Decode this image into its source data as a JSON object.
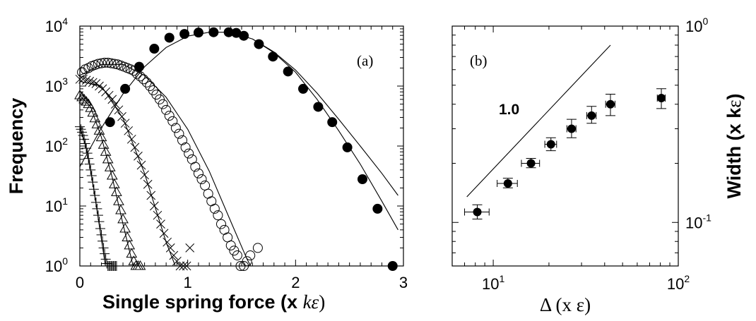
{
  "chart_data": [
    {
      "type": "scatter",
      "panel_label": "(a)",
      "xlabel": "Single spring force (x kε)",
      "xlabel_parts": {
        "prefix": "Single spring force (x ",
        "unit": "kε",
        "suffix": ")"
      },
      "ylabel": "Frequency",
      "xlim": [
        0,
        3
      ],
      "ylim": [
        1,
        10000
      ],
      "yscale": "log",
      "xticks": [
        "0",
        "1",
        "2",
        "3"
      ],
      "yticks": [
        {
          "base": "10",
          "exp": "0"
        },
        {
          "base": "10",
          "exp": "1"
        },
        {
          "base": "10",
          "exp": "2"
        },
        {
          "base": "10",
          "exp": "3"
        },
        {
          "base": "10",
          "exp": "4"
        }
      ],
      "grid": false,
      "series": [
        {
          "marker": "filled-circle",
          "x": [
            0.28,
            0.42,
            0.55,
            0.69,
            0.83,
            0.97,
            1.1,
            1.24,
            1.38,
            1.45,
            1.52,
            1.66,
            1.79,
            1.93,
            2.07,
            2.21,
            2.34,
            2.48,
            2.62,
            2.76,
            2.9
          ],
          "y": [
            250,
            900,
            2100,
            4200,
            6400,
            7400,
            7800,
            7900,
            7900,
            7700,
            6900,
            5000,
            3100,
            1750,
            900,
            450,
            250,
            95,
            28,
            9,
            1
          ],
          "fit": {
            "x": [
              0.0,
              0.2,
              0.4,
              0.6,
              0.8,
              1.0,
              1.2,
              1.4,
              1.6,
              1.8,
              2.0,
              2.2,
              2.4,
              2.6,
              2.8,
              2.95
            ],
            "y": [
              45,
              200,
              740,
              2100,
              4400,
              6800,
              7900,
              7900,
              6100,
              3600,
              1700,
              600,
              180,
              50,
              12,
              4
            ]
          },
          "fit2": {
            "x": [
              1.6,
              1.8,
              2.0,
              2.2,
              2.4,
              2.6,
              2.8,
              2.95
            ],
            "y": [
              6100,
              3700,
              1850,
              760,
              280,
              100,
              35,
              15
            ]
          }
        },
        {
          "marker": "open-circle",
          "x": [
            0.02,
            0.05,
            0.08,
            0.11,
            0.14,
            0.17,
            0.2,
            0.23,
            0.26,
            0.29,
            0.32,
            0.35,
            0.38,
            0.41,
            0.44,
            0.47,
            0.5,
            0.53,
            0.56,
            0.59,
            0.62,
            0.65,
            0.68,
            0.71,
            0.74,
            0.77,
            0.8,
            0.83,
            0.86,
            0.89,
            0.92,
            0.95,
            0.98,
            1.01,
            1.04,
            1.07,
            1.1,
            1.13,
            1.16,
            1.19,
            1.22,
            1.25,
            1.28,
            1.31,
            1.34,
            1.37,
            1.4,
            1.43,
            1.46,
            1.49,
            1.52,
            1.55,
            1.58,
            1.65
          ],
          "y": [
            1700,
            1900,
            2000,
            2150,
            2250,
            2350,
            2400,
            2450,
            2450,
            2400,
            2350,
            2300,
            2200,
            2100,
            2000,
            1900,
            1800,
            1600,
            1450,
            1300,
            1150,
            1000,
            850,
            720,
            600,
            500,
            400,
            320,
            260,
            200,
            160,
            125,
            95,
            75,
            60,
            45,
            35,
            28,
            22,
            16,
            12,
            9,
            7,
            5,
            4,
            3,
            2.2,
            1.8,
            1.5,
            1,
            1,
            1.2,
            1.5,
            2
          ],
          "fit": {
            "x": [
              0.0,
              0.2,
              0.4,
              0.6,
              0.8,
              1.0,
              1.2,
              1.4,
              1.55,
              1.7
            ],
            "y": [
              1500,
              2300,
              2300,
              1500,
              650,
              190,
              38,
              5.5,
              1.3,
              0.4
            ]
          }
        },
        {
          "marker": "cross",
          "x": [
            0.0,
            0.03,
            0.06,
            0.09,
            0.12,
            0.15,
            0.18,
            0.21,
            0.24,
            0.27,
            0.3,
            0.33,
            0.36,
            0.39,
            0.42,
            0.45,
            0.48,
            0.51,
            0.54,
            0.57,
            0.6,
            0.63,
            0.66,
            0.69,
            0.72,
            0.75,
            0.78,
            0.81,
            0.84,
            0.87,
            0.9,
            0.93,
            0.96,
            0.99,
            1.02
          ],
          "y": [
            1300,
            1300,
            1250,
            1200,
            1150,
            1100,
            1000,
            900,
            800,
            700,
            600,
            500,
            400,
            310,
            240,
            180,
            130,
            95,
            68,
            48,
            33,
            23,
            15,
            10,
            7,
            5,
            3.5,
            2.5,
            2,
            1.5,
            1.2,
            1,
            1,
            1,
            2
          ],
          "fit": {
            "x": [
              0.0,
              0.2,
              0.4,
              0.6,
              0.8,
              0.95,
              1.02
            ],
            "y": [
              1200,
              1000,
              290,
              35,
              2.5,
              0.5,
              0.25
            ]
          }
        },
        {
          "marker": "triangle",
          "x": [
            0.0,
            0.02,
            0.04,
            0.06,
            0.08,
            0.1,
            0.12,
            0.14,
            0.16,
            0.18,
            0.2,
            0.22,
            0.24,
            0.26,
            0.28,
            0.3,
            0.32,
            0.34,
            0.36,
            0.38,
            0.4,
            0.42,
            0.44,
            0.46,
            0.48,
            0.5,
            0.52,
            0.54,
            0.56
          ],
          "y": [
            700,
            650,
            600,
            550,
            500,
            430,
            360,
            290,
            230,
            180,
            140,
            105,
            80,
            60,
            44,
            32,
            23,
            17,
            12,
            8.5,
            6,
            4.2,
            3,
            2.2,
            1.6,
            1.2,
            1,
            1,
            1
          ],
          "fit": {
            "x": [
              0.0,
              0.1,
              0.2,
              0.3,
              0.4,
              0.5,
              0.6
            ],
            "y": [
              700,
              450,
              140,
              30,
              5,
              0.9,
              0.15
            ]
          }
        },
        {
          "marker": "plus",
          "x": [
            0.0,
            0.01,
            0.02,
            0.03,
            0.04,
            0.05,
            0.06,
            0.07,
            0.08,
            0.09,
            0.1,
            0.11,
            0.12,
            0.13,
            0.14,
            0.15,
            0.16,
            0.17,
            0.18,
            0.19,
            0.2,
            0.21,
            0.22,
            0.23,
            0.24,
            0.25,
            0.26,
            0.27,
            0.28,
            0.29,
            0.3,
            0.31,
            0.32,
            0.33,
            0.34
          ],
          "y": [
            210,
            190,
            170,
            150,
            130,
            110,
            92,
            76,
            62,
            50,
            40,
            32,
            25,
            19,
            15,
            11.5,
            9,
            7,
            5.5,
            4.2,
            3.3,
            2.6,
            2,
            1.6,
            1.3,
            1.1,
            1,
            1,
            1,
            1,
            1,
            1,
            1,
            1,
            1
          ],
          "fit": {
            "x": [
              0.0,
              0.05,
              0.1,
              0.15,
              0.2,
              0.25,
              0.3
            ],
            "y": [
              200,
              110,
              40,
              11,
              2.8,
              0.7,
              0.2
            ]
          }
        }
      ]
    },
    {
      "type": "scatter",
      "panel_label": "(b)",
      "xlabel": "Δ (x ε)",
      "ylabel": "Width (x kε)",
      "ylabel_parts": {
        "prefix": "Width (x k",
        "unit": "ε",
        "suffix": ")"
      },
      "xscale": "log",
      "yscale": "log",
      "xlim": [
        6,
        100
      ],
      "ylim": [
        0.06,
        1.0
      ],
      "xticks": [
        {
          "base": "10",
          "exp": "1"
        },
        {
          "base": "10",
          "exp": "2"
        }
      ],
      "yticks": [
        {
          "base": "10",
          "exp": "-1"
        },
        {
          "base": "10",
          "exp": "0"
        }
      ],
      "grid": false,
      "slope_label": "1.0",
      "slope_line": {
        "x": [
          7.2,
          43
        ],
        "y": [
          0.135,
          0.8
        ]
      },
      "points": [
        {
          "x": 8.2,
          "y": 0.113,
          "xerr": [
            7.0,
            9.5
          ],
          "yerr": [
            0.104,
            0.123
          ]
        },
        {
          "x": 12.0,
          "y": 0.158,
          "xerr": [
            10.5,
            13.5
          ],
          "yerr": [
            0.15,
            0.168
          ]
        },
        {
          "x": 16.0,
          "y": 0.2,
          "xerr": [
            14.2,
            17.8
          ],
          "yerr": [
            0.19,
            0.212
          ]
        },
        {
          "x": 20.5,
          "y": 0.25,
          "xerr": [
            19.0,
            22.0
          ],
          "yerr": [
            0.232,
            0.27
          ]
        },
        {
          "x": 26.5,
          "y": 0.3,
          "xerr": [
            25.0,
            28.0
          ],
          "yerr": [
            0.27,
            0.335
          ]
        },
        {
          "x": 34.0,
          "y": 0.35,
          "xerr": [
            32.0,
            36.0
          ],
          "yerr": [
            0.32,
            0.39
          ]
        },
        {
          "x": 43.0,
          "y": 0.4,
          "xerr": [
            40.5,
            45.5
          ],
          "yerr": [
            0.35,
            0.45
          ]
        },
        {
          "x": 81.0,
          "y": 0.43,
          "xerr": [
            77.0,
            85.0
          ],
          "yerr": [
            0.38,
            0.48
          ]
        }
      ]
    }
  ]
}
